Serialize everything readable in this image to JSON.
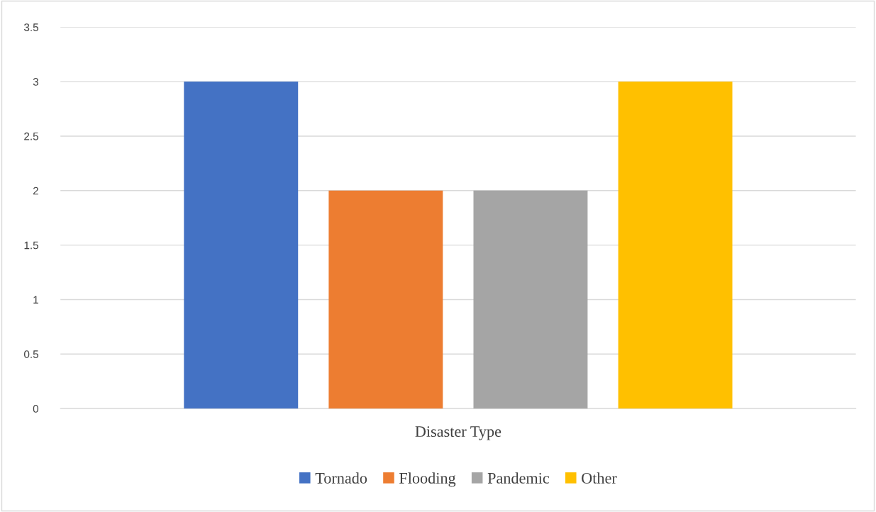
{
  "chart_data": {
    "type": "bar",
    "xlabel": "Disaster Type",
    "categories": [
      null
    ],
    "series": [
      {
        "name": "Tornado",
        "color": "#4472c4",
        "values": [
          3
        ]
      },
      {
        "name": "Flooding",
        "color": "#ed7d31",
        "values": [
          2
        ]
      },
      {
        "name": "Pandemic",
        "color": "#a5a5a5",
        "values": [
          2
        ]
      },
      {
        "name": "Other",
        "color": "#ffc000",
        "values": [
          3
        ]
      }
    ],
    "ylim": [
      0,
      3.5
    ],
    "yticks": [
      0,
      0.5,
      1,
      1.5,
      2,
      2.5,
      3,
      3.5
    ],
    "grid": "y",
    "legend": "bottom"
  }
}
